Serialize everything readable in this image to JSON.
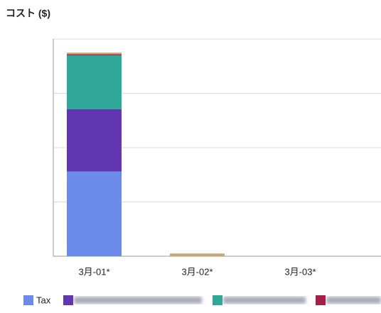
{
  "chart_data": {
    "type": "stacked-bar",
    "title": "コスト ($)",
    "categories": [
      "3月-01*",
      "3月-02*",
      "3月-03*"
    ],
    "series": [
      {
        "name": "Tax",
        "color": "#6a8bea",
        "values": [
          1.56,
          0,
          0
        ]
      },
      {
        "color": "#6236b0",
        "values": [
          1.15,
          0,
          0
        ]
      },
      {
        "color": "#2fa89a",
        "values": [
          0.99,
          0,
          0
        ]
      },
      {
        "color": "#a3204a",
        "values": [
          0.02,
          0,
          0
        ]
      },
      {
        "color": "#c8a870",
        "values": [
          0.03,
          0.05,
          0
        ]
      }
    ],
    "ylim": [
      0,
      4
    ],
    "grid_lines": [
      0,
      1,
      2,
      3,
      4
    ],
    "grid": true
  }
}
